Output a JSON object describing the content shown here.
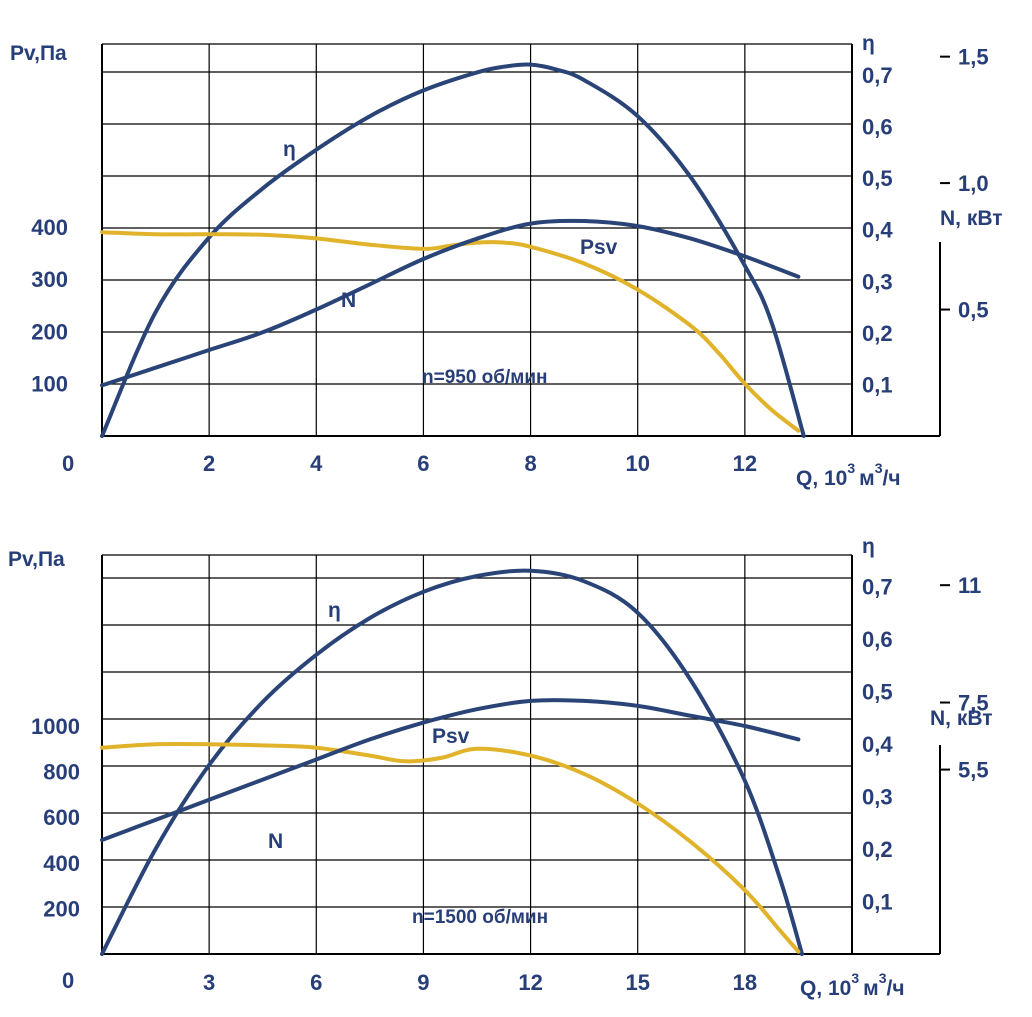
{
  "colors": {
    "blue": "#2a4478",
    "gold": "#e0b32a",
    "text": "#283e78"
  },
  "chart_data": [
    {
      "type": "line",
      "note": "n=950 об/мин",
      "xlabel": "Q, 10",
      "xlabel_unit": "м",
      "xlabel_tail": "/ч",
      "xlabel_sup1": "3",
      "xlabel_sup2": "3",
      "ylabel_left": "Pv,Па",
      "ylabel_eta": "η",
      "ylabel_N": "N, кВт",
      "origin_label": "0",
      "xlim": [
        0,
        14
      ],
      "ylim_left": [
        0,
        750
      ],
      "ylim_eta": [
        0,
        0.76
      ],
      "ylim_N": [
        0,
        1.55
      ],
      "x_ticks": [
        {
          "v": 2,
          "label": "2"
        },
        {
          "v": 4,
          "label": "4"
        },
        {
          "v": 6,
          "label": "6"
        },
        {
          "v": 8,
          "label": "8"
        },
        {
          "v": 10,
          "label": "10"
        },
        {
          "v": 12,
          "label": "12"
        }
      ],
      "left_ticks": [
        {
          "v": 100,
          "label": "100"
        },
        {
          "v": 200,
          "label": "200"
        },
        {
          "v": 300,
          "label": "300"
        },
        {
          "v": 400,
          "label": "400"
        }
      ],
      "eta_ticks": [
        {
          "v": 0.1,
          "label": "0,1"
        },
        {
          "v": 0.2,
          "label": "0,2"
        },
        {
          "v": 0.3,
          "label": "0,3"
        },
        {
          "v": 0.4,
          "label": "0,4"
        },
        {
          "v": 0.5,
          "label": "0,5"
        },
        {
          "v": 0.6,
          "label": "0,6"
        },
        {
          "v": 0.7,
          "label": "0,7"
        }
      ],
      "N_ticks": [
        {
          "v": 0.5,
          "label": "0,5"
        },
        {
          "v": 1.0,
          "label": "1,0"
        },
        {
          "v": 1.5,
          "label": "1,5"
        }
      ],
      "series": [
        {
          "name": "η",
          "axis": "eta",
          "color": "blue",
          "x": [
            0,
            1,
            2,
            3,
            4,
            5,
            6,
            7,
            7.5,
            8,
            8.5,
            9,
            10,
            11,
            12,
            12.5,
            13.1
          ],
          "values": [
            0,
            0.24,
            0.385,
            0.48,
            0.555,
            0.62,
            0.67,
            0.705,
            0.716,
            0.72,
            0.71,
            0.69,
            0.62,
            0.5,
            0.33,
            0.22,
            0
          ]
        },
        {
          "name": "Psv",
          "axis": "left",
          "color": "gold",
          "x": [
            0,
            1,
            2,
            3,
            4,
            5,
            6,
            6.5,
            7,
            7.5,
            8,
            9,
            10,
            11,
            11.5,
            12,
            12.5,
            13
          ],
          "values": [
            390,
            386,
            386,
            385,
            378,
            366,
            358,
            364,
            370,
            370,
            362,
            330,
            280,
            210,
            160,
            100,
            50,
            10
          ]
        },
        {
          "name": "N",
          "axis": "N",
          "color": "blue",
          "x": [
            0,
            1,
            2,
            3,
            4,
            5,
            6,
            7,
            8,
            9,
            10,
            11,
            12,
            13
          ],
          "values": [
            0.2,
            0.27,
            0.34,
            0.41,
            0.5,
            0.6,
            0.7,
            0.78,
            0.84,
            0.85,
            0.83,
            0.78,
            0.71,
            0.63
          ]
        }
      ],
      "labels": {
        "eta": "η",
        "psv": "Psv",
        "n": "N"
      }
    },
    {
      "type": "line",
      "note": "n=1500 об/мин",
      "xlabel": "Q, 10",
      "xlabel_unit": "м",
      "xlabel_tail": "/ч",
      "xlabel_sup1": "3",
      "xlabel_sup2": "3",
      "ylabel_left": "Pv,Па",
      "ylabel_eta": "η",
      "ylabel_N": "N, кВт",
      "origin_label": "0",
      "xlim": [
        0,
        21
      ],
      "ylim_left": [
        0,
        1750
      ],
      "ylim_eta": [
        0,
        0.76
      ],
      "ylim_N": [
        0,
        11.9
      ],
      "x_ticks": [
        {
          "v": 3,
          "label": "3"
        },
        {
          "v": 6,
          "label": "6"
        },
        {
          "v": 9,
          "label": "9"
        },
        {
          "v": 12,
          "label": "12"
        },
        {
          "v": 15,
          "label": "15"
        },
        {
          "v": 18,
          "label": "18"
        }
      ],
      "left_ticks": [
        {
          "v": 200,
          "label": "200"
        },
        {
          "v": 400,
          "label": "400"
        },
        {
          "v": 600,
          "label": "600"
        },
        {
          "v": 800,
          "label": "800"
        },
        {
          "v": 1000,
          "label": "1000"
        }
      ],
      "eta_ticks": [
        {
          "v": 0.1,
          "label": "0,1"
        },
        {
          "v": 0.2,
          "label": "0,2"
        },
        {
          "v": 0.3,
          "label": "0,3"
        },
        {
          "v": 0.4,
          "label": "0,4"
        },
        {
          "v": 0.5,
          "label": "0,5"
        },
        {
          "v": 0.6,
          "label": "0,6"
        },
        {
          "v": 0.7,
          "label": "0,7"
        }
      ],
      "N_ticks": [
        {
          "v": 5.5,
          "label": "5,5"
        },
        {
          "v": 7.5,
          "label": "7,5"
        },
        {
          "v": 11,
          "label": "11"
        }
      ],
      "series": [
        {
          "name": "η",
          "axis": "eta",
          "color": "blue",
          "x": [
            0,
            1.5,
            3,
            4.5,
            6,
            7.5,
            9,
            10.5,
            12,
            13.5,
            15,
            16.5,
            18,
            19,
            19.6
          ],
          "values": [
            0,
            0.2,
            0.36,
            0.48,
            0.57,
            0.64,
            0.69,
            0.72,
            0.73,
            0.71,
            0.65,
            0.52,
            0.33,
            0.14,
            0
          ]
        },
        {
          "name": "Psv",
          "axis": "left",
          "color": "gold",
          "x": [
            0,
            1.5,
            3,
            4.5,
            6,
            7.5,
            8.5,
            9.5,
            10.5,
            12,
            13.5,
            15,
            16.5,
            18,
            19,
            19.5
          ],
          "values": [
            905,
            920,
            920,
            915,
            905,
            870,
            845,
            860,
            900,
            870,
            790,
            660,
            490,
            280,
            100,
            10
          ]
        },
        {
          "name": "N",
          "axis": "N",
          "color": "blue",
          "x": [
            0,
            1.5,
            3,
            4.5,
            6,
            7.5,
            9,
            10.5,
            12,
            13.5,
            15,
            16.5,
            18,
            19.5
          ],
          "values": [
            3.4,
            4.0,
            4.6,
            5.2,
            5.8,
            6.4,
            6.9,
            7.3,
            7.55,
            7.55,
            7.4,
            7.1,
            6.8,
            6.4
          ]
        }
      ],
      "labels": {
        "eta": "η",
        "psv": "Psv",
        "n": "N"
      }
    }
  ]
}
